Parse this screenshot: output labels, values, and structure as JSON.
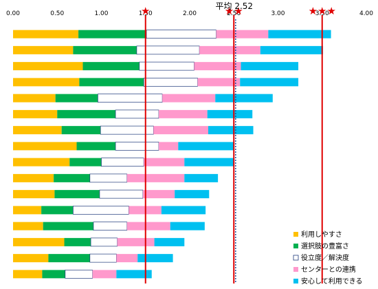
{
  "chart_data": {
    "type": "bar",
    "orientation": "horizontal",
    "stacked": true,
    "title": "",
    "xlabel": "",
    "ylabel": "",
    "xlim": [
      0,
      4
    ],
    "x_ticks": [
      "0.00",
      "0.50",
      "1.00",
      "1.50",
      "2.00",
      "2.50",
      "3.00",
      "3.50",
      "4.00"
    ],
    "grid": false,
    "legend_position": "bottom-right",
    "series": [
      {
        "name": "利用しやすさ",
        "color": "#FFC000",
        "values": [
          0.74,
          0.68,
          0.79,
          0.75,
          0.48,
          0.5,
          0.55,
          0.72,
          0.64,
          0.46,
          0.47,
          0.32,
          0.34,
          0.58,
          0.4,
          0.33
        ]
      },
      {
        "name": "選択肢の豊富さ",
        "color": "#00B050",
        "values": [
          0.77,
          0.72,
          0.64,
          0.73,
          0.48,
          0.66,
          0.44,
          0.44,
          0.36,
          0.41,
          0.51,
          0.36,
          0.57,
          0.3,
          0.47,
          0.26
        ]
      },
      {
        "name": "役立度／解決度",
        "color": "#FFFFFF",
        "values": [
          0.79,
          0.71,
          0.62,
          0.61,
          0.73,
          0.49,
          0.6,
          0.49,
          0.48,
          0.42,
          0.49,
          0.63,
          0.38,
          0.3,
          0.3,
          0.31
        ]
      },
      {
        "name": "センターとの連携",
        "color": "#FF99CC",
        "values": [
          0.59,
          0.69,
          0.53,
          0.48,
          0.6,
          0.55,
          0.62,
          0.22,
          0.46,
          0.65,
          0.36,
          0.37,
          0.49,
          0.42,
          0.24,
          0.27
        ]
      },
      {
        "name": "安心して利用できる",
        "color": "#00C0F0",
        "values": [
          0.71,
          0.71,
          0.65,
          0.66,
          0.65,
          0.51,
          0.51,
          0.63,
          0.56,
          0.38,
          0.39,
          0.5,
          0.39,
          0.34,
          0.4,
          0.4
        ]
      }
    ],
    "reference_lines": [
      {
        "value": 1.5,
        "color": "#E00000",
        "label": "★"
      },
      {
        "value": 2.5,
        "color": "#E00000",
        "label": "★★"
      },
      {
        "value": 3.5,
        "color": "#E00000",
        "label": "★★★"
      },
      {
        "value": 2.52,
        "color": "#1F4E9A",
        "style": "dotted",
        "label": "平均 2.52"
      }
    ]
  }
}
